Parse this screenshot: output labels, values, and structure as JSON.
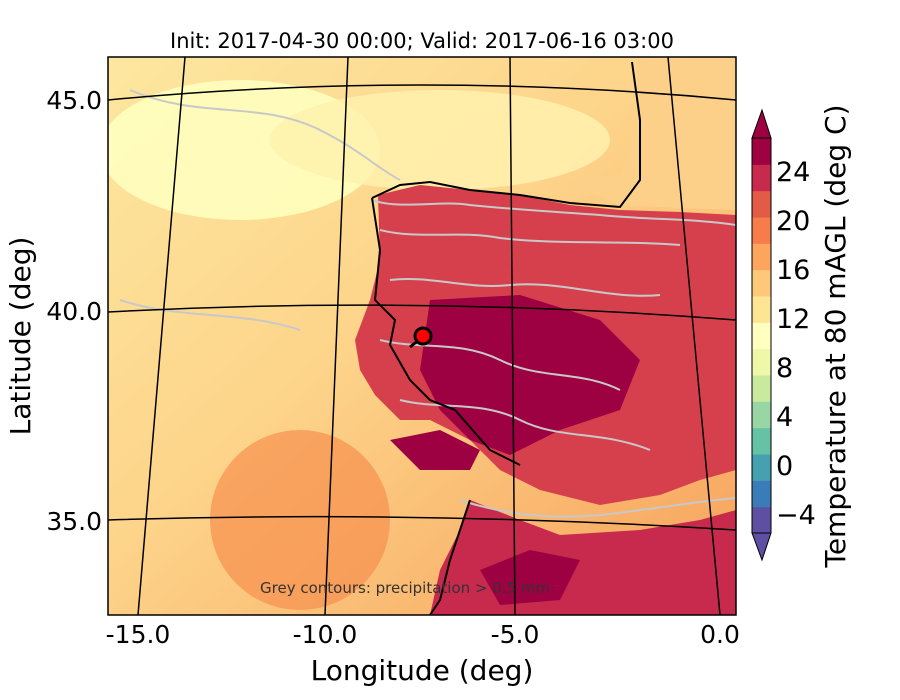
{
  "title": "Init: 2017-04-30 00:00; Valid: 2017-06-16 03:00",
  "xlabel": "Longitude (deg)",
  "ylabel": "Latitude (deg)",
  "x_ticks": [
    "-15.0",
    "-10.0",
    "-5.0",
    "0.0"
  ],
  "y_ticks": [
    "45.0",
    "40.0",
    "35.0"
  ],
  "colorbar": {
    "label": "Temperature at 80 mAGL (deg C)",
    "ticks": [
      "24",
      "20",
      "16",
      "12",
      "8",
      "4",
      "0",
      "−4"
    ],
    "colors": [
      "#5e4fa2",
      "#3a7cb8",
      "#45a0b0",
      "#66c2a5",
      "#98d6a4",
      "#c9e99e",
      "#eef8a8",
      "#ffffbf",
      "#fee593",
      "#fdc877",
      "#fda45d",
      "#f67d4a",
      "#e35a47",
      "#c72a4c",
      "#9e0142"
    ]
  },
  "annotation": "Grey contours: precipitation > 0.5 mm",
  "marker": {
    "label": "site",
    "color": "#ff0000"
  }
}
